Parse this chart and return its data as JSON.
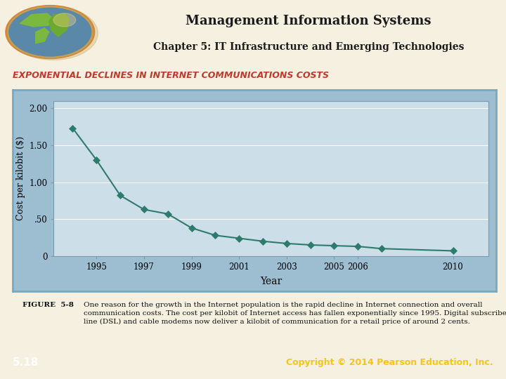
{
  "title": "Management Information Systems",
  "subtitle": "Chapter 5: IT Infrastructure and Emerging Technologies",
  "slide_title": "EXPONENTIAL DECLINES IN INTERNET COMMUNICATIONS COSTS",
  "years": [
    1994,
    1995,
    1996,
    1997,
    1998,
    1999,
    2000,
    2001,
    2002,
    2003,
    2004,
    2005,
    2006,
    2007,
    2010
  ],
  "costs": [
    1.73,
    1.3,
    0.82,
    0.63,
    0.57,
    0.38,
    0.28,
    0.24,
    0.2,
    0.17,
    0.15,
    0.14,
    0.13,
    0.1,
    0.07
  ],
  "xlabel": "Year",
  "ylabel": "Cost per kilobit ($)",
  "ytick_positions": [
    0,
    0.5,
    1.0,
    1.5,
    2.0
  ],
  "ytick_labels": [
    "0",
    ".50",
    "1.00",
    "1.50",
    "2.00"
  ],
  "xtick_positions": [
    1995,
    1997,
    1999,
    2001,
    2003,
    2005,
    2006,
    2010
  ],
  "xtick_labels": [
    "1995",
    "1997",
    "1999",
    "2001",
    "2003",
    "2005",
    "2006",
    "2010"
  ],
  "ylim": [
    0,
    2.1
  ],
  "xlim": [
    1993.2,
    2011.5
  ],
  "line_color": "#2e7b6c",
  "marker_color": "#2e7b6c",
  "plot_bg": "#ccdee8",
  "outer_panel_bg": "#9dbdd1",
  "outer_panel_border": "#7aaabf",
  "header_bg": "#f0e8c8",
  "slide_title_color": "#c0392b",
  "footer_bg": "#8b1a1a",
  "footer_left_text": "5.18",
  "footer_right_text": "Copyright © 2014 Pearson Education, Inc.",
  "footer_text_color_left": "#ffffff",
  "footer_text_color_right": "#f5c518",
  "figure_label": "FIGURE  5-8",
  "figure_caption": "One reason for the growth in the Internet population is the rapid decline in Internet connection and overall\ncommunication costs. The cost per kilobit of Internet access has fallen exponentially since 1995. Digital subscriber\nline (DSL) and cable modems now deliver a kilobit of communication for a retail price of around 2 cents.",
  "bg_color": "#f5f0e0",
  "title_color": "#1a1a1a",
  "grid_color": "#b0c8d8",
  "spine_color": "#7a9ab0"
}
